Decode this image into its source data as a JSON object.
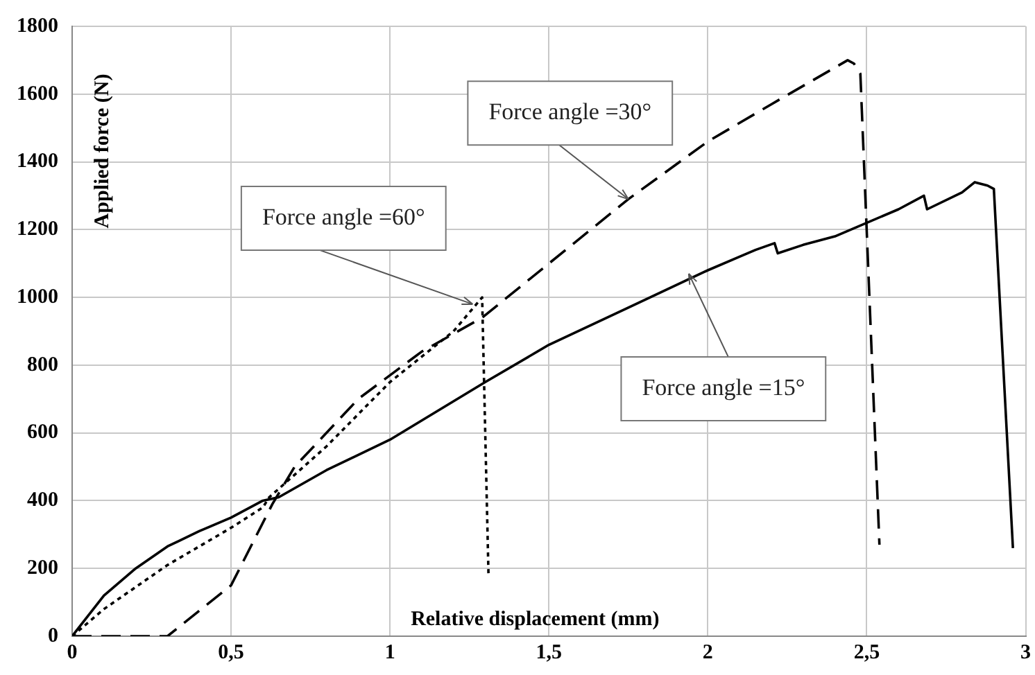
{
  "chart_data": {
    "type": "line",
    "xlabel": "Relative displacement (mm)",
    "ylabel": "Applied force (N)",
    "xlim": [
      0,
      3
    ],
    "xticks": [
      0,
      {
        "value": 0.5,
        "label": "0,5"
      },
      1,
      {
        "value": 1.5,
        "label": "1,5"
      },
      2,
      {
        "value": 2.5,
        "label": "2,5"
      },
      3
    ],
    "ylim": [
      0,
      1800
    ],
    "yticks": [
      0,
      200,
      400,
      600,
      800,
      1000,
      1200,
      1400,
      1600,
      1800
    ],
    "grid": true,
    "legend": false,
    "marker": "none",
    "series": [
      {
        "color": "#000000",
        "line_style": "solid",
        "x": [
          0,
          0.05,
          0.1,
          0.2,
          0.3,
          0.4,
          0.5,
          0.6,
          0.65,
          0.8,
          1,
          1.3,
          1.5,
          1.75,
          2,
          2.1,
          2.15,
          2.21,
          2.22,
          2.3,
          2.4,
          2.6,
          2.68,
          2.69,
          2.8,
          2.84,
          2.88,
          2.9,
          2.96
        ],
        "values": [
          0,
          60,
          120,
          200,
          265,
          310,
          350,
          400,
          410,
          490,
          580,
          750,
          860,
          970,
          1080,
          1120,
          1140,
          1160,
          1130,
          1155,
          1180,
          1260,
          1300,
          1260,
          1310,
          1340,
          1330,
          1320,
          260
        ]
      },
      {
        "color": "#000000",
        "line_style": "dashed",
        "x": [
          0,
          0.3,
          0.5,
          0.63,
          0.7,
          0.9,
          1.1,
          1.29,
          1.5,
          1.75,
          2,
          2.2,
          2.44,
          2.46,
          2.48,
          2.54
        ],
        "values": [
          0,
          0,
          150,
          390,
          500,
          700,
          840,
          940,
          1100,
          1290,
          1460,
          1570,
          1700,
          1690,
          1660,
          270
        ]
      },
      {
        "color": "#000000",
        "line_style": "dotted",
        "x": [
          0,
          0.1,
          0.3,
          0.5,
          0.6,
          0.62,
          0.8,
          1,
          1.2,
          1.29,
          1.31
        ],
        "values": [
          0,
          80,
          210,
          320,
          380,
          410,
          560,
          750,
          900,
          1000,
          180
        ]
      }
    ],
    "annotations": [
      {
        "text": "Force angle =60°",
        "x": 1.26,
        "y": 980
      },
      {
        "text": "Force angle =30°",
        "x": 1.75,
        "y": 1290
      },
      {
        "text": "Force angle =15°",
        "x": 1.94,
        "y": 1070
      }
    ]
  }
}
